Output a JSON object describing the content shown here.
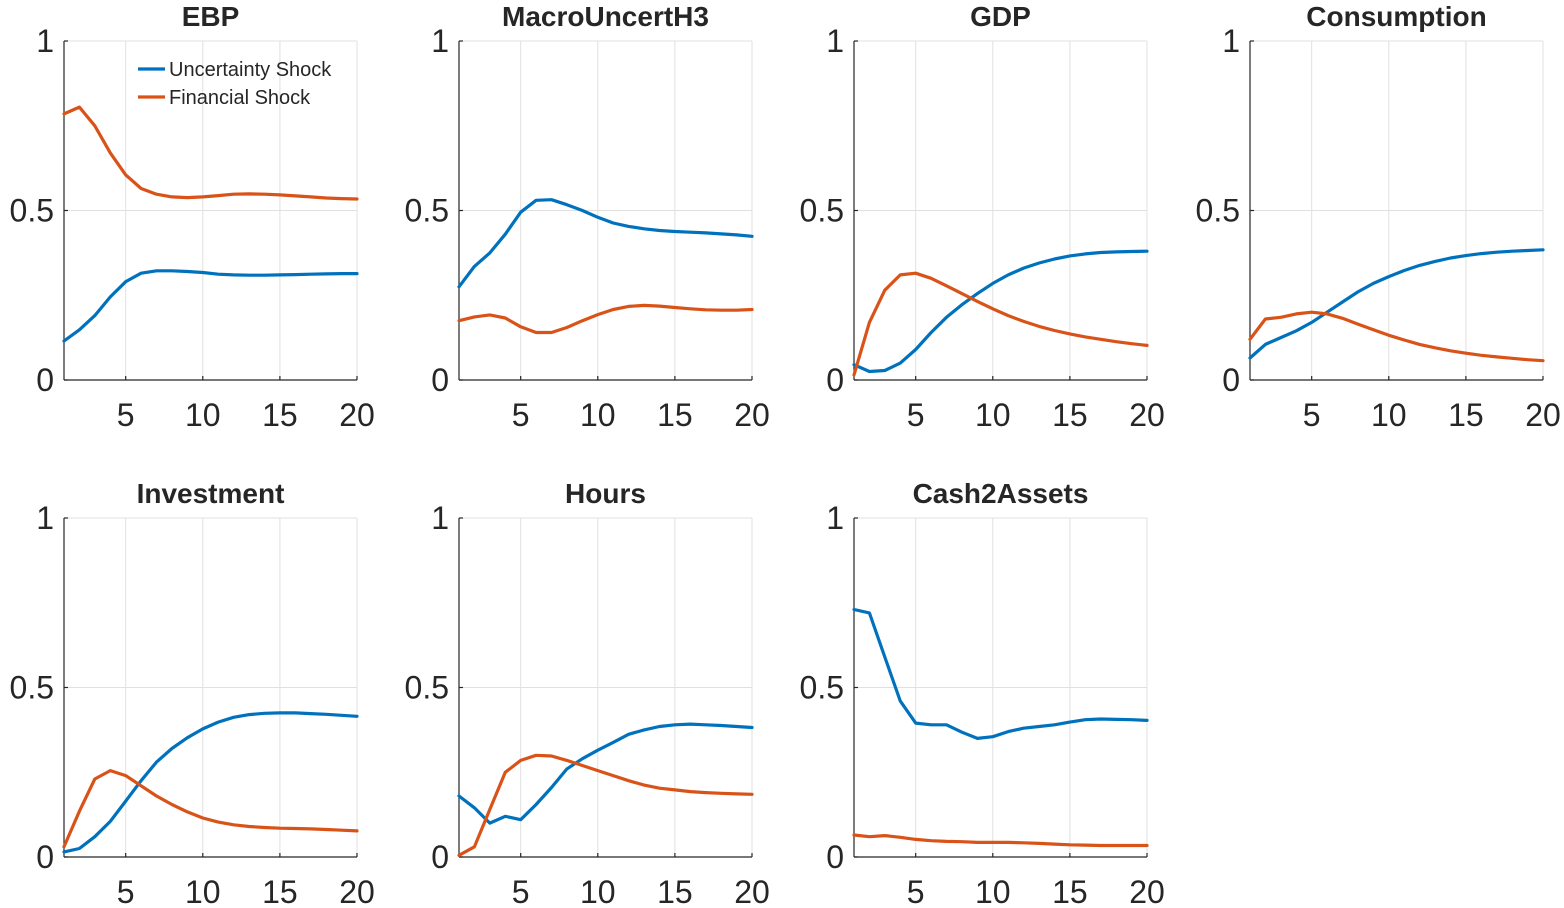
{
  "colors": {
    "uncertainty": "#0072BD",
    "financial": "#D95319",
    "axis": "#262626",
    "grid": "#e0e0e0"
  },
  "chart_data": [
    {
      "type": "line",
      "title": "EBP",
      "xlim": [
        1,
        20
      ],
      "ylim": [
        0,
        1
      ],
      "xticks": [
        5,
        10,
        15,
        20
      ],
      "yticks": [
        0,
        0.5,
        1
      ],
      "grid": true,
      "legend": {
        "placement": "top-right",
        "entries": [
          "Uncertainty Shock",
          "Financial Shock"
        ]
      },
      "x": [
        1,
        2,
        3,
        4,
        5,
        6,
        7,
        8,
        9,
        10,
        11,
        12,
        13,
        14,
        15,
        16,
        17,
        18,
        19,
        20
      ],
      "series": [
        {
          "name": "Uncertainty Shock",
          "values": [
            0.115,
            0.148,
            0.19,
            0.245,
            0.29,
            0.315,
            0.322,
            0.322,
            0.32,
            0.317,
            0.312,
            0.31,
            0.309,
            0.309,
            0.31,
            0.311,
            0.312,
            0.313,
            0.314,
            0.314
          ]
        },
        {
          "name": "Financial Shock",
          "values": [
            0.785,
            0.805,
            0.75,
            0.67,
            0.605,
            0.565,
            0.548,
            0.54,
            0.538,
            0.54,
            0.544,
            0.548,
            0.549,
            0.548,
            0.546,
            0.543,
            0.54,
            0.537,
            0.535,
            0.534
          ]
        }
      ]
    },
    {
      "type": "line",
      "title": "MacroUncertH3",
      "xlim": [
        1,
        20
      ],
      "ylim": [
        0,
        1
      ],
      "xticks": [
        5,
        10,
        15,
        20
      ],
      "yticks": [
        0,
        0.5,
        1
      ],
      "grid": true,
      "x": [
        1,
        2,
        3,
        4,
        5,
        6,
        7,
        8,
        9,
        10,
        11,
        12,
        13,
        14,
        15,
        16,
        17,
        18,
        19,
        20
      ],
      "series": [
        {
          "name": "Uncertainty Shock",
          "values": [
            0.275,
            0.335,
            0.375,
            0.43,
            0.495,
            0.53,
            0.532,
            0.517,
            0.5,
            0.48,
            0.463,
            0.453,
            0.446,
            0.441,
            0.438,
            0.436,
            0.434,
            0.431,
            0.428,
            0.424
          ]
        },
        {
          "name": "Financial Shock",
          "values": [
            0.175,
            0.186,
            0.192,
            0.183,
            0.157,
            0.14,
            0.14,
            0.155,
            0.175,
            0.193,
            0.208,
            0.217,
            0.22,
            0.218,
            0.214,
            0.21,
            0.207,
            0.206,
            0.206,
            0.208
          ]
        }
      ]
    },
    {
      "type": "line",
      "title": "GDP",
      "xlim": [
        1,
        20
      ],
      "ylim": [
        0,
        1
      ],
      "xticks": [
        5,
        10,
        15,
        20
      ],
      "yticks": [
        0,
        0.5,
        1
      ],
      "grid": true,
      "x": [
        1,
        2,
        3,
        4,
        5,
        6,
        7,
        8,
        9,
        10,
        11,
        12,
        13,
        14,
        15,
        16,
        17,
        18,
        19,
        20
      ],
      "series": [
        {
          "name": "Uncertainty Shock",
          "values": [
            0.045,
            0.025,
            0.028,
            0.05,
            0.09,
            0.14,
            0.185,
            0.222,
            0.255,
            0.285,
            0.31,
            0.33,
            0.345,
            0.357,
            0.366,
            0.372,
            0.376,
            0.378,
            0.379,
            0.38
          ]
        },
        {
          "name": "Financial Shock",
          "values": [
            0.015,
            0.17,
            0.265,
            0.31,
            0.315,
            0.3,
            0.278,
            0.255,
            0.232,
            0.21,
            0.19,
            0.173,
            0.158,
            0.146,
            0.136,
            0.127,
            0.12,
            0.113,
            0.107,
            0.102
          ]
        }
      ]
    },
    {
      "type": "line",
      "title": "Consumption",
      "xlim": [
        1,
        20
      ],
      "ylim": [
        0,
        1
      ],
      "xticks": [
        5,
        10,
        15,
        20
      ],
      "yticks": [
        0,
        0.5,
        1
      ],
      "grid": true,
      "x": [
        1,
        2,
        3,
        4,
        5,
        6,
        7,
        8,
        9,
        10,
        11,
        12,
        13,
        14,
        15,
        16,
        17,
        18,
        19,
        20
      ],
      "series": [
        {
          "name": "Uncertainty Shock",
          "values": [
            0.065,
            0.105,
            0.125,
            0.145,
            0.17,
            0.2,
            0.23,
            0.26,
            0.285,
            0.305,
            0.323,
            0.338,
            0.35,
            0.36,
            0.367,
            0.373,
            0.377,
            0.38,
            0.382,
            0.384
          ]
        },
        {
          "name": "Financial Shock",
          "values": [
            0.12,
            0.18,
            0.185,
            0.195,
            0.2,
            0.195,
            0.182,
            0.165,
            0.148,
            0.132,
            0.118,
            0.105,
            0.095,
            0.086,
            0.079,
            0.073,
            0.068,
            0.064,
            0.06,
            0.057
          ]
        }
      ]
    },
    {
      "type": "line",
      "title": "Investment",
      "xlim": [
        1,
        20
      ],
      "ylim": [
        0,
        1
      ],
      "xticks": [
        5,
        10,
        15,
        20
      ],
      "yticks": [
        0,
        0.5,
        1
      ],
      "grid": true,
      "x": [
        1,
        2,
        3,
        4,
        5,
        6,
        7,
        8,
        9,
        10,
        11,
        12,
        13,
        14,
        15,
        16,
        17,
        18,
        19,
        20
      ],
      "series": [
        {
          "name": "Uncertainty Shock",
          "values": [
            0.015,
            0.025,
            0.06,
            0.105,
            0.165,
            0.225,
            0.28,
            0.32,
            0.352,
            0.378,
            0.398,
            0.412,
            0.42,
            0.424,
            0.425,
            0.425,
            0.423,
            0.421,
            0.418,
            0.415
          ]
        },
        {
          "name": "Financial Shock",
          "values": [
            0.03,
            0.135,
            0.23,
            0.255,
            0.24,
            0.21,
            0.18,
            0.155,
            0.133,
            0.115,
            0.103,
            0.095,
            0.09,
            0.087,
            0.085,
            0.084,
            0.083,
            0.081,
            0.079,
            0.077
          ]
        }
      ]
    },
    {
      "type": "line",
      "title": "Hours",
      "xlim": [
        1,
        20
      ],
      "ylim": [
        0,
        1
      ],
      "xticks": [
        5,
        10,
        15,
        20
      ],
      "yticks": [
        0,
        0.5,
        1
      ],
      "grid": true,
      "x": [
        1,
        2,
        3,
        4,
        5,
        6,
        7,
        8,
        9,
        10,
        11,
        12,
        13,
        14,
        15,
        16,
        17,
        18,
        19,
        20
      ],
      "series": [
        {
          "name": "Uncertainty Shock",
          "values": [
            0.18,
            0.145,
            0.1,
            0.12,
            0.11,
            0.155,
            0.205,
            0.26,
            0.29,
            0.315,
            0.338,
            0.362,
            0.375,
            0.385,
            0.39,
            0.392,
            0.39,
            0.388,
            0.385,
            0.382
          ]
        },
        {
          "name": "Financial Shock",
          "values": [
            0.005,
            0.03,
            0.14,
            0.25,
            0.285,
            0.3,
            0.298,
            0.285,
            0.27,
            0.255,
            0.24,
            0.225,
            0.212,
            0.203,
            0.198,
            0.193,
            0.19,
            0.188,
            0.186,
            0.185
          ]
        }
      ]
    },
    {
      "type": "line",
      "title": "Cash2Assets",
      "xlim": [
        1,
        20
      ],
      "ylim": [
        0,
        1
      ],
      "xticks": [
        5,
        10,
        15,
        20
      ],
      "yticks": [
        0,
        0.5,
        1
      ],
      "grid": true,
      "x": [
        1,
        2,
        3,
        4,
        5,
        6,
        7,
        8,
        9,
        10,
        11,
        12,
        13,
        14,
        15,
        16,
        17,
        18,
        19,
        20
      ],
      "series": [
        {
          "name": "Uncertainty Shock",
          "values": [
            0.73,
            0.72,
            0.59,
            0.46,
            0.395,
            0.39,
            0.39,
            0.368,
            0.35,
            0.355,
            0.37,
            0.38,
            0.385,
            0.39,
            0.398,
            0.405,
            0.407,
            0.406,
            0.405,
            0.403
          ]
        },
        {
          "name": "Financial Shock",
          "values": [
            0.065,
            0.06,
            0.063,
            0.058,
            0.052,
            0.048,
            0.046,
            0.045,
            0.043,
            0.043,
            0.043,
            0.042,
            0.04,
            0.038,
            0.036,
            0.035,
            0.034,
            0.034,
            0.034,
            0.034
          ]
        }
      ]
    }
  ]
}
